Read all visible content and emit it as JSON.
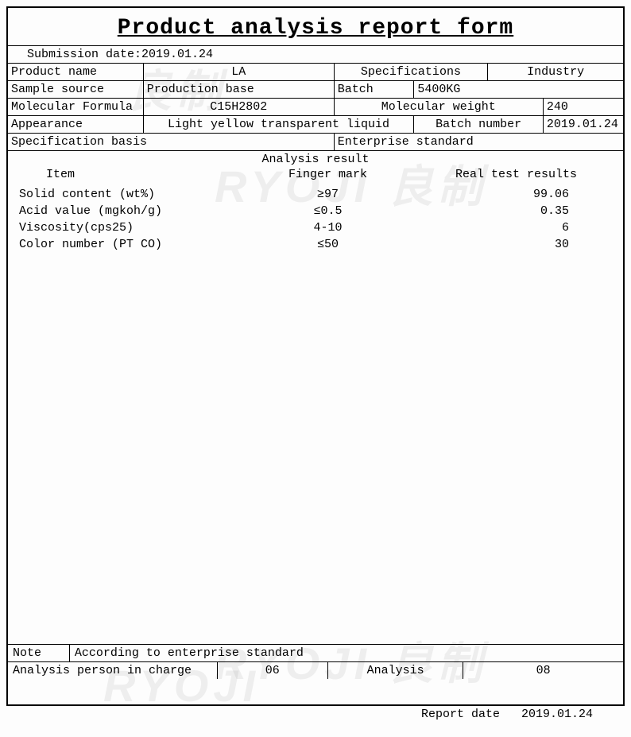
{
  "title": "Product analysis report form",
  "submission": {
    "label": "Submission date:",
    "value": "2019.01.24"
  },
  "row1": {
    "c1_label": "Product name",
    "c1_value": "LA",
    "c2_label": "Specifications",
    "c3_label": "Industry"
  },
  "row2": {
    "c1_label": "Sample source",
    "c1_value": "Production base",
    "c2_label": "Batch",
    "c2_value": "5400KG"
  },
  "row3": {
    "c1_label": "Molecular Formula",
    "c1_value": "C15H2802",
    "c2_label": "Molecular weight",
    "c2_value": "240"
  },
  "row4": {
    "c1_label": "Appearance",
    "c1_value": "Light yellow transparent liquid",
    "c2_label": "Batch number",
    "c2_value": "2019.01.24"
  },
  "row5": {
    "c1_label": "Specification basis",
    "c2_label": "Enterprise standard"
  },
  "analysis": {
    "header": "Analysis result",
    "col_item": "Item",
    "col_mark": "Finger mark",
    "col_res": "Real test results",
    "rows": [
      {
        "item": "Solid content (wt%)",
        "mark": "≥97",
        "res": "99.06"
      },
      {
        "item": "Acid value (mgkoh/g)",
        "mark": "≤0.5",
        "res": "0.35"
      },
      {
        "item": "Viscosity(cps25)",
        "mark": "4-10",
        "res": "6"
      },
      {
        "item": "Color number (PT  CO)",
        "mark": "≤50",
        "res": "30"
      }
    ]
  },
  "note": {
    "label": "Note",
    "value": "According to enterprise standard"
  },
  "signoff": {
    "c1_label": "Analysis person in charge",
    "c1_value": "06",
    "c2_label": "Analysis",
    "c2_value": "08"
  },
  "report_date": {
    "label": "Report date",
    "value": "2019.01.24"
  },
  "watermark": "RYOJI 良制"
}
